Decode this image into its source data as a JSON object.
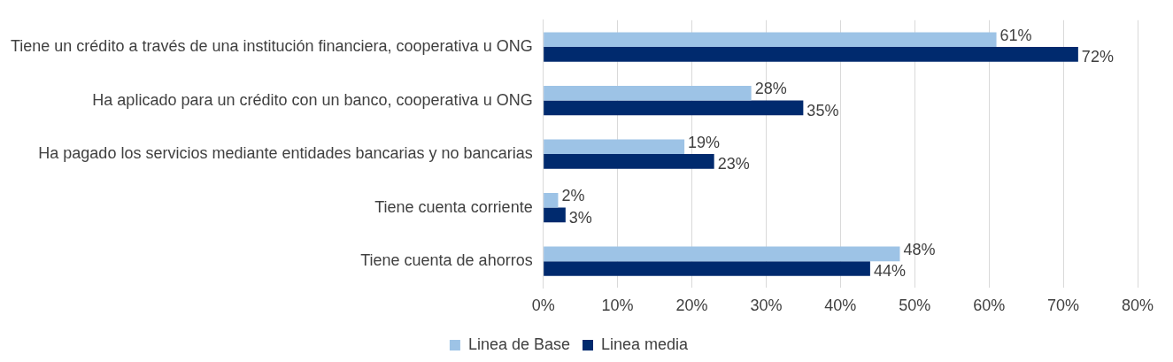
{
  "chart_data": {
    "type": "bar",
    "orientation": "horizontal",
    "categories": [
      "Tiene un crédito a través de una institución financiera, cooperativa u ONG",
      "Ha aplicado para un crédito con un banco, cooperativa u ONG",
      "Ha pagado los servicios mediante entidades bancarias y no bancarias",
      "Tiene cuenta corriente",
      "Tiene cuenta de ahorros"
    ],
    "series": [
      {
        "name": "Linea de Base",
        "color": "#9dc3e6",
        "values": [
          61,
          28,
          19,
          2,
          48
        ],
        "value_labels": [
          "61%",
          "28%",
          "19%",
          "2%",
          "48%"
        ]
      },
      {
        "name": "Linea media",
        "color": "#002a6e",
        "values": [
          72,
          35,
          23,
          3,
          44
        ],
        "value_labels": [
          "72%",
          "35%",
          "23%",
          "3%",
          "44%"
        ]
      }
    ],
    "xlim": [
      0,
      80
    ],
    "xticks": [
      {
        "value": 0,
        "label": "0%"
      },
      {
        "value": 10,
        "label": "10%"
      },
      {
        "value": 20,
        "label": "20%"
      },
      {
        "value": 30,
        "label": "30%"
      },
      {
        "value": 40,
        "label": "40%"
      },
      {
        "value": 50,
        "label": "50%"
      },
      {
        "value": 60,
        "label": "60%"
      },
      {
        "value": 70,
        "label": "70%"
      },
      {
        "value": 80,
        "label": "80%"
      }
    ],
    "grid": "x",
    "legend": "bottom"
  }
}
